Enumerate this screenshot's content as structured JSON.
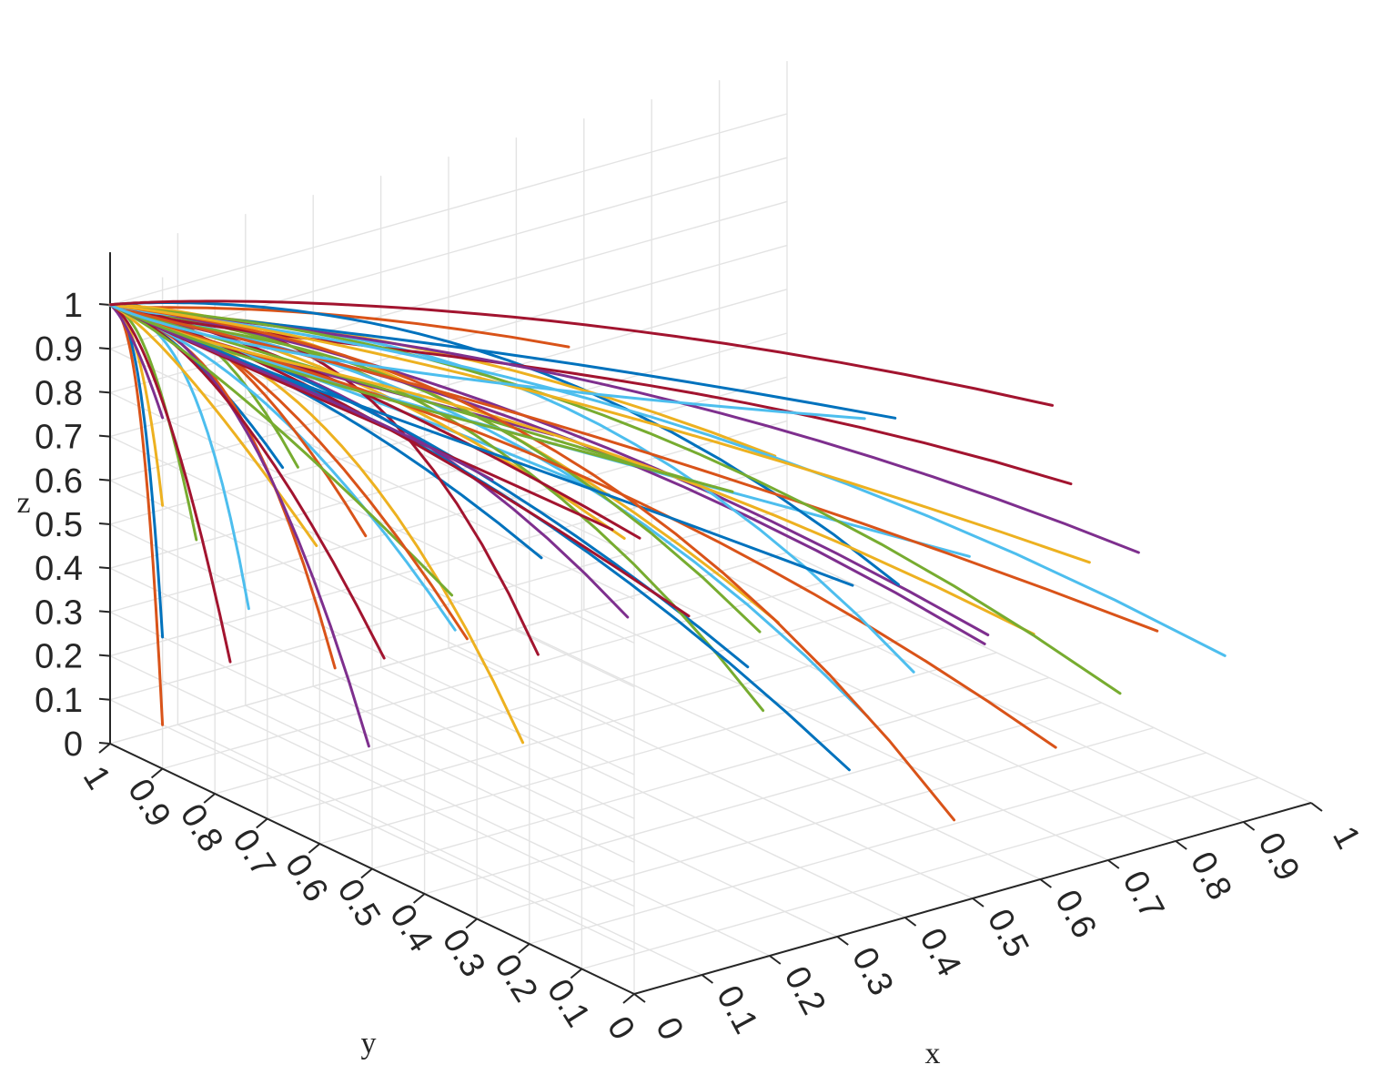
{
  "chart_data": {
    "type": "line",
    "subtype": "3d-trajectories",
    "title": "",
    "xlabel": "x",
    "ylabel": "y",
    "zlabel": "z",
    "xlim": [
      0,
      1
    ],
    "ylim": [
      0,
      1
    ],
    "zlim": [
      0,
      1
    ],
    "grid": true,
    "legend": "none",
    "x_ticks": [
      "0",
      "0.1",
      "0.2",
      "0.3",
      "0.4",
      "0.5",
      "0.6",
      "0.7",
      "0.8",
      "0.9",
      "1"
    ],
    "y_ticks": [
      "0",
      "0.1",
      "0.2",
      "0.3",
      "0.4",
      "0.5",
      "0.6",
      "0.7",
      "0.8",
      "0.9",
      "1"
    ],
    "z_ticks": [
      "0",
      "0.1",
      "0.2",
      "0.3",
      "0.4",
      "0.5",
      "0.6",
      "0.7",
      "0.8",
      "0.9",
      "1"
    ],
    "colors": [
      "#0072BD",
      "#D95319",
      "#EDB120",
      "#7E2F8E",
      "#77AC30",
      "#4DBEEE",
      "#A2142F"
    ],
    "series_start_points": [
      [
        0.0,
        0.9,
        0.3
      ],
      [
        0.0,
        0.9,
        0.1
      ],
      [
        0.0,
        0.9,
        0.6
      ],
      [
        0.0,
        0.9,
        0.8
      ],
      [
        0.05,
        0.9,
        0.5
      ],
      [
        0.05,
        0.8,
        0.4
      ],
      [
        0.1,
        0.9,
        0.2
      ],
      [
        0.1,
        0.8,
        0.7
      ],
      [
        0.1,
        0.7,
        0.3
      ],
      [
        0.15,
        0.8,
        0.5
      ],
      [
        0.15,
        0.7,
        0.1
      ],
      [
        0.2,
        0.9,
        0.6
      ],
      [
        0.2,
        0.6,
        0.4
      ],
      [
        0.25,
        0.8,
        0.2
      ],
      [
        0.25,
        0.5,
        0.6
      ],
      [
        0.3,
        0.9,
        0.4
      ],
      [
        0.3,
        0.6,
        0.1
      ],
      [
        0.3,
        0.4,
        0.5
      ],
      [
        0.35,
        0.8,
        0.3
      ],
      [
        0.35,
        0.5,
        0.7
      ],
      [
        0.4,
        0.7,
        0.2
      ],
      [
        0.4,
        0.3,
        0.4
      ],
      [
        0.45,
        0.9,
        0.1
      ],
      [
        0.45,
        0.6,
        0.5
      ],
      [
        0.5,
        0.8,
        0.6
      ],
      [
        0.5,
        0.4,
        0.2
      ],
      [
        0.5,
        0.2,
        0.3
      ],
      [
        0.55,
        0.7,
        0.4
      ],
      [
        0.55,
        0.3,
        0.1
      ],
      [
        0.6,
        0.9,
        0.7
      ],
      [
        0.6,
        0.5,
        0.3
      ],
      [
        0.6,
        0.1,
        0.5
      ],
      [
        0.65,
        0.6,
        0.2
      ],
      [
        0.65,
        0.2,
        0.6
      ],
      [
        0.7,
        0.8,
        0.1
      ],
      [
        0.7,
        0.4,
        0.4
      ],
      [
        0.7,
        0.1,
        0.2
      ],
      [
        0.75,
        0.7,
        0.5
      ],
      [
        0.75,
        0.3,
        0.3
      ],
      [
        0.8,
        0.9,
        0.3
      ],
      [
        0.8,
        0.5,
        0.1
      ],
      [
        0.8,
        0.2,
        0.7
      ],
      [
        0.85,
        0.6,
        0.6
      ],
      [
        0.85,
        0.1,
        0.4
      ],
      [
        0.9,
        0.4,
        0.2
      ],
      [
        0.9,
        0.2,
        0.5
      ],
      [
        0.95,
        0.3,
        0.1
      ],
      [
        0.95,
        0.1,
        0.3
      ],
      [
        0.2,
        0.3,
        0.8
      ],
      [
        0.4,
        0.1,
        0.7
      ],
      [
        0.55,
        0.1,
        0.1
      ],
      [
        0.75,
        0.1,
        0.6
      ],
      [
        0.1,
        0.4,
        0.9
      ],
      [
        0.3,
        0.2,
        0.9
      ],
      [
        0.65,
        0.4,
        0.8
      ],
      [
        0.85,
        0.3,
        0.8
      ]
    ],
    "series_end_point": [
      0,
      1,
      1
    ]
  }
}
